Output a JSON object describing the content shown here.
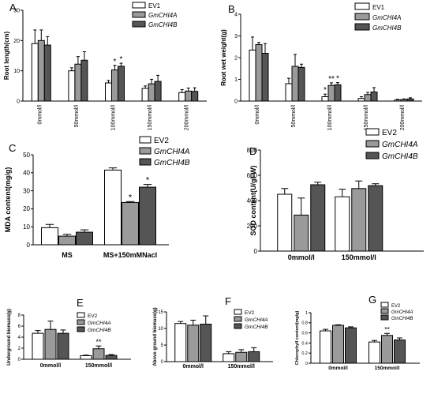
{
  "colors": {
    "white": "#ffffff",
    "gray": "#9a9a9a",
    "dark": "#555555",
    "stroke": "#000000"
  },
  "chart_data": [
    {
      "id": "A",
      "type": "bar",
      "panel_label": "A",
      "categories": [
        "0mmol/l",
        "50mmol/l",
        "100mmol/l",
        "150mmol/l",
        "200mmol/l"
      ],
      "series": [
        {
          "name": "EV1",
          "values": [
            19,
            10,
            6,
            4.2,
            2.8
          ],
          "errors": [
            4.5,
            1,
            0.8,
            0.8,
            1
          ]
        },
        {
          "name": "GmCHI4A",
          "values": [
            20,
            12.2,
            10.3,
            5.7,
            3.3
          ],
          "errors": [
            3.5,
            2.5,
            1.5,
            1.5,
            1
          ]
        },
        {
          "name": "GmCHI4B",
          "values": [
            18.5,
            13.5,
            11.5,
            6.5,
            3.2
          ],
          "errors": [
            2.8,
            2.8,
            1,
            2,
            1.2
          ]
        }
      ],
      "ylabel": "Root length(cm)",
      "ylim": [
        0,
        30
      ],
      "yticks": [
        0,
        10,
        20,
        30
      ],
      "annotations": [
        {
          "category": "100mmol/l",
          "series": 1,
          "text": "*"
        },
        {
          "category": "100mmol/l",
          "series": 2,
          "text": "*"
        }
      ]
    },
    {
      "id": "B",
      "type": "bar",
      "panel_label": "B",
      "categories": [
        "0mmol/l",
        "50mmol/l",
        "100mmol/l",
        "150mmol/l",
        "200mmol/l"
      ],
      "series": [
        {
          "name": "EV1",
          "values": [
            2.35,
            0.8,
            0.2,
            0.12,
            0.05
          ],
          "errors": [
            0.6,
            0.25,
            0.12,
            0.08,
            0.03
          ]
        },
        {
          "name": "GmCHI4A",
          "values": [
            2.6,
            1.6,
            0.72,
            0.3,
            0.07
          ],
          "errors": [
            0.1,
            0.55,
            0.12,
            0.1,
            0.03
          ]
        },
        {
          "name": "GmCHI4B",
          "values": [
            2.2,
            1.55,
            0.75,
            0.42,
            0.1
          ],
          "errors": [
            0.45,
            0.15,
            0.1,
            0.2,
            0.05
          ]
        }
      ],
      "ylabel": "Root wet weight(g)",
      "ylim": [
        0,
        4
      ],
      "yticks": [
        0,
        1,
        2,
        3,
        4
      ],
      "annotations": [
        {
          "category": "100mmol/l",
          "series": 0,
          "text": "*"
        },
        {
          "category": "100mmol/l",
          "series": 1,
          "text": "**"
        },
        {
          "category": "100mmol/l",
          "series": 2,
          "text": "*"
        }
      ]
    },
    {
      "id": "C",
      "type": "bar",
      "panel_label": "C",
      "categories": [
        "MS",
        "MS+150mMNacl"
      ],
      "series": [
        {
          "name": "EV2",
          "values": [
            9.5,
            41.5
          ],
          "errors": [
            1.8,
            1.2
          ]
        },
        {
          "name": "GmCHI4A",
          "values": [
            4.8,
            23.5
          ],
          "errors": [
            1,
            0.5
          ]
        },
        {
          "name": "GmCHI4B",
          "values": [
            7,
            32
          ],
          "errors": [
            1.3,
            1.5
          ]
        }
      ],
      "ylabel": "MDA content(mg/g)",
      "ylim": [
        0,
        50
      ],
      "yticks": [
        0,
        10,
        20,
        30,
        40,
        50
      ],
      "annotations": [
        {
          "category": "MS+150mMNacl",
          "series": 1,
          "text": "*"
        },
        {
          "category": "MS+150mMNacl",
          "series": 2,
          "text": "*"
        }
      ]
    },
    {
      "id": "D",
      "type": "bar",
      "panel_label": "D",
      "categories": [
        "0mmol/l",
        "150mmol/l"
      ],
      "series": [
        {
          "name": "EV2",
          "values": [
            450,
            430
          ],
          "errors": [
            45,
            60
          ]
        },
        {
          "name": "GmCHI4A",
          "values": [
            285,
            495
          ],
          "errors": [
            135,
            60
          ]
        },
        {
          "name": "GmCHI4B",
          "values": [
            525,
            518
          ],
          "errors": [
            20,
            15
          ]
        }
      ],
      "ylabel": "SOD content(U/gFW)",
      "ylim": [
        0,
        800
      ],
      "yticks": [
        0,
        200,
        400,
        600,
        800
      ],
      "annotations": []
    },
    {
      "id": "E",
      "type": "bar",
      "panel_label": "E",
      "categories": [
        "0mmol/l",
        "150mmol/l"
      ],
      "series": [
        {
          "name": "EV2",
          "values": [
            4.7,
            0.65
          ],
          "errors": [
            0.5,
            0.1
          ]
        },
        {
          "name": "GmCHI4A",
          "values": [
            5.4,
            1.9
          ],
          "errors": [
            1.5,
            0.5
          ]
        },
        {
          "name": "GmCHI4B",
          "values": [
            4.7,
            0.7
          ],
          "errors": [
            0.6,
            0.15
          ]
        }
      ],
      "ylabel": "Underground biomass(g)",
      "ylim": [
        0,
        8
      ],
      "yticks": [
        0,
        2,
        4,
        6,
        8
      ],
      "annotations": [
        {
          "category": "150mmol/l",
          "series": 1,
          "text": "**"
        }
      ]
    },
    {
      "id": "F",
      "type": "bar",
      "panel_label": "F",
      "categories": [
        "0mmol/l",
        "150mmol/l"
      ],
      "series": [
        {
          "name": "EV2",
          "values": [
            11.5,
            2.4
          ],
          "errors": [
            0.6,
            0.6
          ]
        },
        {
          "name": "GmCHI4A",
          "values": [
            11,
            2.8
          ],
          "errors": [
            1.5,
            0.8
          ]
        },
        {
          "name": "GmCHI4B",
          "values": [
            11.3,
            3
          ],
          "errors": [
            2.5,
            1.2
          ]
        }
      ],
      "ylabel": "Above ground biomass(g)",
      "ylim": [
        0,
        15
      ],
      "yticks": [
        0,
        5,
        10,
        15
      ],
      "annotations": []
    },
    {
      "id": "G",
      "type": "bar",
      "panel_label": "G",
      "categories": [
        "0mmol/l",
        "150mmol/l"
      ],
      "series": [
        {
          "name": "EV2",
          "values": [
            0.64,
            0.42
          ],
          "errors": [
            0.03,
            0.03
          ]
        },
        {
          "name": "GmCHI4A",
          "values": [
            0.75,
            0.55
          ],
          "errors": [
            0.01,
            0.04
          ]
        },
        {
          "name": "GmCHI4B",
          "values": [
            0.7,
            0.46
          ],
          "errors": [
            0.02,
            0.04
          ]
        }
      ],
      "ylabel": "Chlorophyll content(mg/g)",
      "ylim": [
        0,
        1
      ],
      "yticks": [
        0,
        0.2,
        0.4,
        0.6,
        0.8,
        1
      ],
      "annotations": [
        {
          "category": "150mmol/l",
          "series": 1,
          "text": "**"
        }
      ]
    }
  ]
}
